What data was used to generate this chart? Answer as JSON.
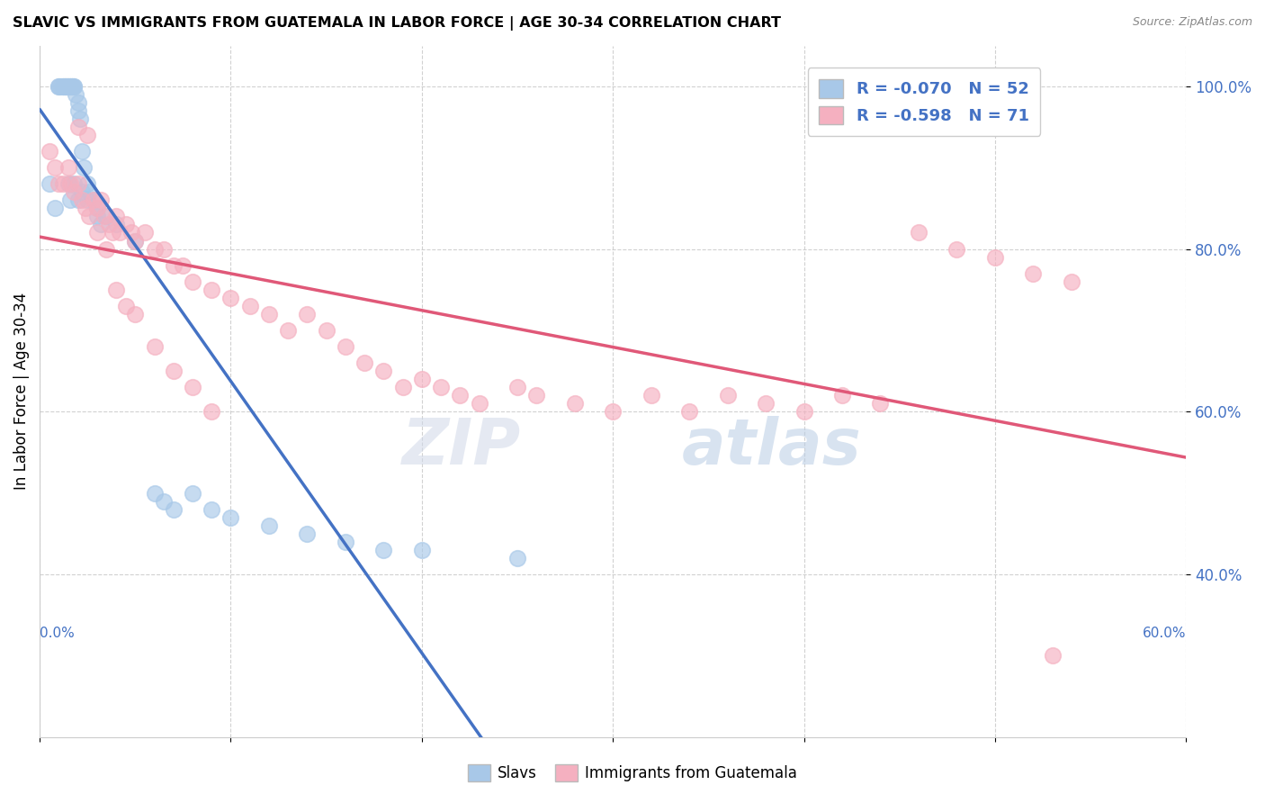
{
  "title": "SLAVIC VS IMMIGRANTS FROM GUATEMALA IN LABOR FORCE | AGE 30-34 CORRELATION CHART",
  "source": "Source: ZipAtlas.com",
  "ylabel": "In Labor Force | Age 30-34",
  "xlim": [
    0.0,
    0.6
  ],
  "ylim": [
    0.2,
    1.05
  ],
  "yticks": [
    0.4,
    0.6,
    0.8,
    1.0
  ],
  "ytick_labels": [
    "40.0%",
    "60.0%",
    "80.0%",
    "100.0%"
  ],
  "legend_r_slavic": "-0.070",
  "legend_n_slavic": "52",
  "legend_r_guatemala": "-0.598",
  "legend_n_guatemala": "71",
  "slavic_color": "#a8c8e8",
  "guatemala_color": "#f5b0c0",
  "slavic_line_color": "#4472C4",
  "guatemala_line_color": "#e05878",
  "background_color": "#ffffff",
  "slavic_x": [
    0.01,
    0.01,
    0.011,
    0.012,
    0.012,
    0.013,
    0.013,
    0.014,
    0.014,
    0.015,
    0.015,
    0.016,
    0.016,
    0.017,
    0.017,
    0.018,
    0.018,
    0.019,
    0.02,
    0.02,
    0.021,
    0.022,
    0.023,
    0.025,
    0.026,
    0.028,
    0.03,
    0.032,
    0.005,
    0.008,
    0.015,
    0.016,
    0.018,
    0.02,
    0.022,
    0.025,
    0.03,
    0.035,
    0.04,
    0.05,
    0.06,
    0.065,
    0.07,
    0.08,
    0.09,
    0.1,
    0.12,
    0.14,
    0.16,
    0.18,
    0.2,
    0.25
  ],
  "slavic_y": [
    1.0,
    1.0,
    1.0,
    1.0,
    1.0,
    1.0,
    1.0,
    1.0,
    1.0,
    1.0,
    1.0,
    1.0,
    1.0,
    1.0,
    1.0,
    1.0,
    1.0,
    0.99,
    0.97,
    0.98,
    0.96,
    0.92,
    0.9,
    0.88,
    0.87,
    0.86,
    0.84,
    0.83,
    0.88,
    0.85,
    0.88,
    0.86,
    0.88,
    0.86,
    0.87,
    0.86,
    0.85,
    0.84,
    0.83,
    0.81,
    0.5,
    0.49,
    0.48,
    0.5,
    0.48,
    0.47,
    0.46,
    0.45,
    0.44,
    0.43,
    0.43,
    0.42
  ],
  "guatemala_x": [
    0.005,
    0.008,
    0.01,
    0.012,
    0.015,
    0.016,
    0.018,
    0.02,
    0.022,
    0.024,
    0.026,
    0.028,
    0.03,
    0.032,
    0.034,
    0.036,
    0.038,
    0.04,
    0.042,
    0.045,
    0.048,
    0.05,
    0.055,
    0.06,
    0.065,
    0.07,
    0.075,
    0.08,
    0.09,
    0.1,
    0.11,
    0.12,
    0.13,
    0.14,
    0.15,
    0.16,
    0.17,
    0.18,
    0.19,
    0.2,
    0.21,
    0.22,
    0.23,
    0.25,
    0.26,
    0.28,
    0.3,
    0.32,
    0.34,
    0.36,
    0.38,
    0.4,
    0.42,
    0.44,
    0.46,
    0.48,
    0.5,
    0.52,
    0.54,
    0.02,
    0.025,
    0.03,
    0.035,
    0.04,
    0.045,
    0.05,
    0.06,
    0.07,
    0.08,
    0.09,
    0.53
  ],
  "guatemala_y": [
    0.92,
    0.9,
    0.88,
    0.88,
    0.9,
    0.88,
    0.87,
    0.88,
    0.86,
    0.85,
    0.84,
    0.86,
    0.85,
    0.86,
    0.84,
    0.83,
    0.82,
    0.84,
    0.82,
    0.83,
    0.82,
    0.81,
    0.82,
    0.8,
    0.8,
    0.78,
    0.78,
    0.76,
    0.75,
    0.74,
    0.73,
    0.72,
    0.7,
    0.72,
    0.7,
    0.68,
    0.66,
    0.65,
    0.63,
    0.64,
    0.63,
    0.62,
    0.61,
    0.63,
    0.62,
    0.61,
    0.6,
    0.62,
    0.6,
    0.62,
    0.61,
    0.6,
    0.62,
    0.61,
    0.82,
    0.8,
    0.79,
    0.77,
    0.76,
    0.95,
    0.94,
    0.82,
    0.8,
    0.75,
    0.73,
    0.72,
    0.68,
    0.65,
    0.63,
    0.6,
    0.3
  ]
}
